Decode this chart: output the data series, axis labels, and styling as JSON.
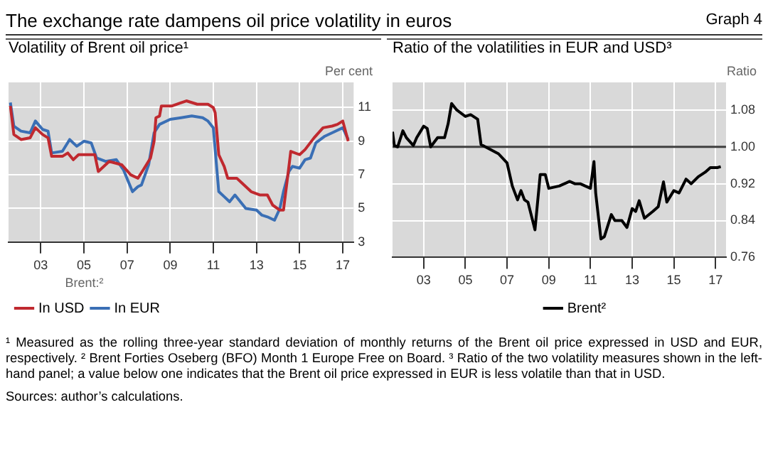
{
  "chart_data": [
    {
      "type": "line",
      "title": "Volatility of Brent oil price¹",
      "ylabel": "Per cent",
      "legend_title": "Brent:²",
      "legend": "bottom",
      "grid": true,
      "marker": "none",
      "line_style": "solid",
      "annotations": [
        "The exchange rate dampens oil price volatility in euros",
        "Graph 4"
      ],
      "xlim": [
        "2002-01",
        "2018-01"
      ],
      "xticks": [
        {
          "value": "2003-07",
          "label": "03"
        },
        {
          "value": "2005-07",
          "label": "05"
        },
        {
          "value": "2007-07",
          "label": "07"
        },
        {
          "value": "2009-07",
          "label": "09"
        },
        {
          "value": "2011-07",
          "label": "11"
        },
        {
          "value": "2013-07",
          "label": "13"
        },
        {
          "value": "2015-07",
          "label": "15"
        },
        {
          "value": "2017-07",
          "label": "17"
        }
      ],
      "ylim": [
        3,
        12.5
      ],
      "yticks": [
        3,
        5,
        7,
        9,
        11
      ],
      "series": [
        {
          "name": "In USD",
          "color": "#c0292f",
          "x": [
            "2002-02",
            "2002-04",
            "2002-08",
            "2003-01",
            "2003-04",
            "2003-08",
            "2003-11",
            "2004-01",
            "2004-07",
            "2004-10",
            "2005-01",
            "2005-04",
            "2006-01",
            "2006-03",
            "2006-09",
            "2007-04",
            "2007-09",
            "2008-01",
            "2008-04",
            "2008-08",
            "2008-10",
            "2008-11",
            "2009-01",
            "2009-02",
            "2009-08",
            "2010-04",
            "2010-10",
            "2011-04",
            "2011-07",
            "2011-08",
            "2011-10",
            "2012-01",
            "2012-03",
            "2012-08",
            "2013-01",
            "2013-04",
            "2013-09",
            "2014-01",
            "2014-04",
            "2014-08",
            "2014-10",
            "2015-01",
            "2015-02",
            "2015-07",
            "2015-10",
            "2016-03",
            "2016-08",
            "2017-01",
            "2017-04",
            "2017-07",
            "2017-10"
          ],
          "values": [
            11.1,
            9.4,
            9.1,
            9.2,
            9.8,
            9.4,
            9.2,
            8.1,
            8.1,
            8.3,
            7.9,
            8.2,
            8.2,
            7.2,
            7.8,
            7.6,
            7.0,
            6.8,
            7.3,
            8.0,
            9.0,
            10.4,
            10.5,
            11.1,
            11.1,
            11.4,
            11.2,
            11.2,
            11.0,
            10.7,
            8.2,
            7.5,
            6.8,
            6.8,
            6.3,
            6.0,
            5.8,
            5.8,
            5.2,
            4.9,
            4.9,
            7.5,
            8.4,
            8.2,
            8.5,
            9.2,
            9.8,
            9.9,
            10.0,
            10.2,
            9.0
          ]
        },
        {
          "name": "In EUR",
          "color": "#3a6fb5",
          "x": [
            "2002-02",
            "2002-04",
            "2002-08",
            "2003-01",
            "2003-04",
            "2003-08",
            "2003-11",
            "2004-01",
            "2004-07",
            "2004-11",
            "2005-03",
            "2005-07",
            "2005-11",
            "2006-02",
            "2006-07",
            "2007-01",
            "2007-05",
            "2007-10",
            "2008-01",
            "2008-03",
            "2008-07",
            "2008-10",
            "2009-01",
            "2009-07",
            "2010-01",
            "2010-07",
            "2011-01",
            "2011-04",
            "2011-07",
            "2011-08",
            "2011-10",
            "2012-01",
            "2012-04",
            "2012-07",
            "2013-01",
            "2013-07",
            "2013-10",
            "2014-01",
            "2014-05",
            "2014-08",
            "2014-10",
            "2015-01",
            "2015-03",
            "2015-07",
            "2015-10",
            "2016-01",
            "2016-04",
            "2016-09",
            "2017-01",
            "2017-07",
            "2017-10"
          ],
          "values": [
            11.3,
            9.9,
            9.6,
            9.5,
            10.2,
            9.7,
            9.6,
            8.3,
            8.4,
            9.1,
            8.7,
            9.0,
            8.9,
            8.0,
            7.8,
            7.9,
            7.3,
            6.0,
            6.3,
            6.4,
            7.6,
            9.5,
            10.0,
            10.3,
            10.4,
            10.5,
            10.4,
            10.2,
            9.8,
            8.5,
            6.0,
            5.7,
            5.4,
            5.8,
            5.0,
            4.9,
            4.6,
            4.5,
            4.3,
            5.0,
            6.0,
            7.2,
            7.5,
            7.4,
            7.9,
            8.0,
            8.9,
            9.3,
            9.5,
            9.8,
            9.1
          ]
        }
      ]
    },
    {
      "type": "line",
      "title": "Ratio of the volatilities in EUR and USD³",
      "ylabel": "Ratio",
      "legend": "bottom",
      "grid": true,
      "marker": "none",
      "line_style": "solid",
      "annotations": [
        "¹ Measured as the rolling three-year standard deviation of monthly returns of the Brent oil price expressed in USD and EUR, respectively.   ² Brent Forties Oseberg (BFO) Month 1 Europe Free on Board.   ³ Ratio of the two volatility measures shown in the left-hand panel; a value below one indicates that the Brent oil price expressed in EUR is less volatile than that in USD.",
        "Sources: author’s calculations."
      ],
      "xlim": [
        "2002-01",
        "2018-01"
      ],
      "xticks": [
        {
          "value": "2003-07",
          "label": "03"
        },
        {
          "value": "2005-07",
          "label": "05"
        },
        {
          "value": "2007-07",
          "label": "07"
        },
        {
          "value": "2009-07",
          "label": "09"
        },
        {
          "value": "2011-07",
          "label": "11"
        },
        {
          "value": "2013-07",
          "label": "13"
        },
        {
          "value": "2015-07",
          "label": "15"
        },
        {
          "value": "2017-07",
          "label": "17"
        }
      ],
      "ylim": [
        0.76,
        1.14
      ],
      "yticks": [
        0.76,
        0.84,
        0.92,
        {
          "value": 1,
          "label": "1.00"
        },
        1.08
      ],
      "ref_lines": [
        {
          "axis": "y",
          "value": 1,
          "label": null,
          "color": "#404040"
        }
      ],
      "series": [
        {
          "name": "Brent²",
          "color": "#000000",
          "x": [
            "2002-01",
            "2002-02",
            "2002-04",
            "2002-07",
            "2002-09",
            "2003-01",
            "2003-03",
            "2003-07",
            "2003-09",
            "2003-11",
            "2004-03",
            "2004-07",
            "2004-09",
            "2004-11",
            "2005-02",
            "2005-07",
            "2005-10",
            "2006-02",
            "2006-04",
            "2006-09",
            "2007-02",
            "2007-07",
            "2007-10",
            "2008-01",
            "2008-03",
            "2008-05",
            "2008-07",
            "2008-11",
            "2009-02",
            "2009-05",
            "2009-07",
            "2010-01",
            "2010-07",
            "2010-10",
            "2011-01",
            "2011-07",
            "2011-09",
            "2011-10",
            "2012-01",
            "2012-03",
            "2012-07",
            "2012-09",
            "2013-01",
            "2013-04",
            "2013-07",
            "2013-09",
            "2013-11",
            "2014-02",
            "2014-07",
            "2014-10",
            "2015-01",
            "2015-03",
            "2015-07",
            "2015-10",
            "2016-02",
            "2016-05",
            "2016-09",
            "2017-01",
            "2017-04",
            "2017-08",
            "2017-10"
          ],
          "values": [
            1.033,
            1.003,
            1.0,
            1.035,
            1.02,
            1.003,
            1.02,
            1.045,
            1.04,
            1.0,
            1.02,
            1.02,
            1.05,
            1.094,
            1.08,
            1.066,
            1.07,
            1.06,
            1.005,
            0.995,
            0.985,
            0.965,
            0.915,
            0.885,
            0.905,
            0.885,
            0.88,
            0.82,
            0.94,
            0.94,
            0.91,
            0.915,
            0.925,
            0.92,
            0.92,
            0.91,
            0.968,
            0.9,
            0.8,
            0.805,
            0.853,
            0.84,
            0.84,
            0.825,
            0.866,
            0.86,
            0.883,
            0.845,
            0.86,
            0.87,
            0.924,
            0.88,
            0.905,
            0.9,
            0.93,
            0.92,
            0.935,
            0.945,
            0.955,
            0.955,
            0.957
          ]
        }
      ]
    }
  ]
}
